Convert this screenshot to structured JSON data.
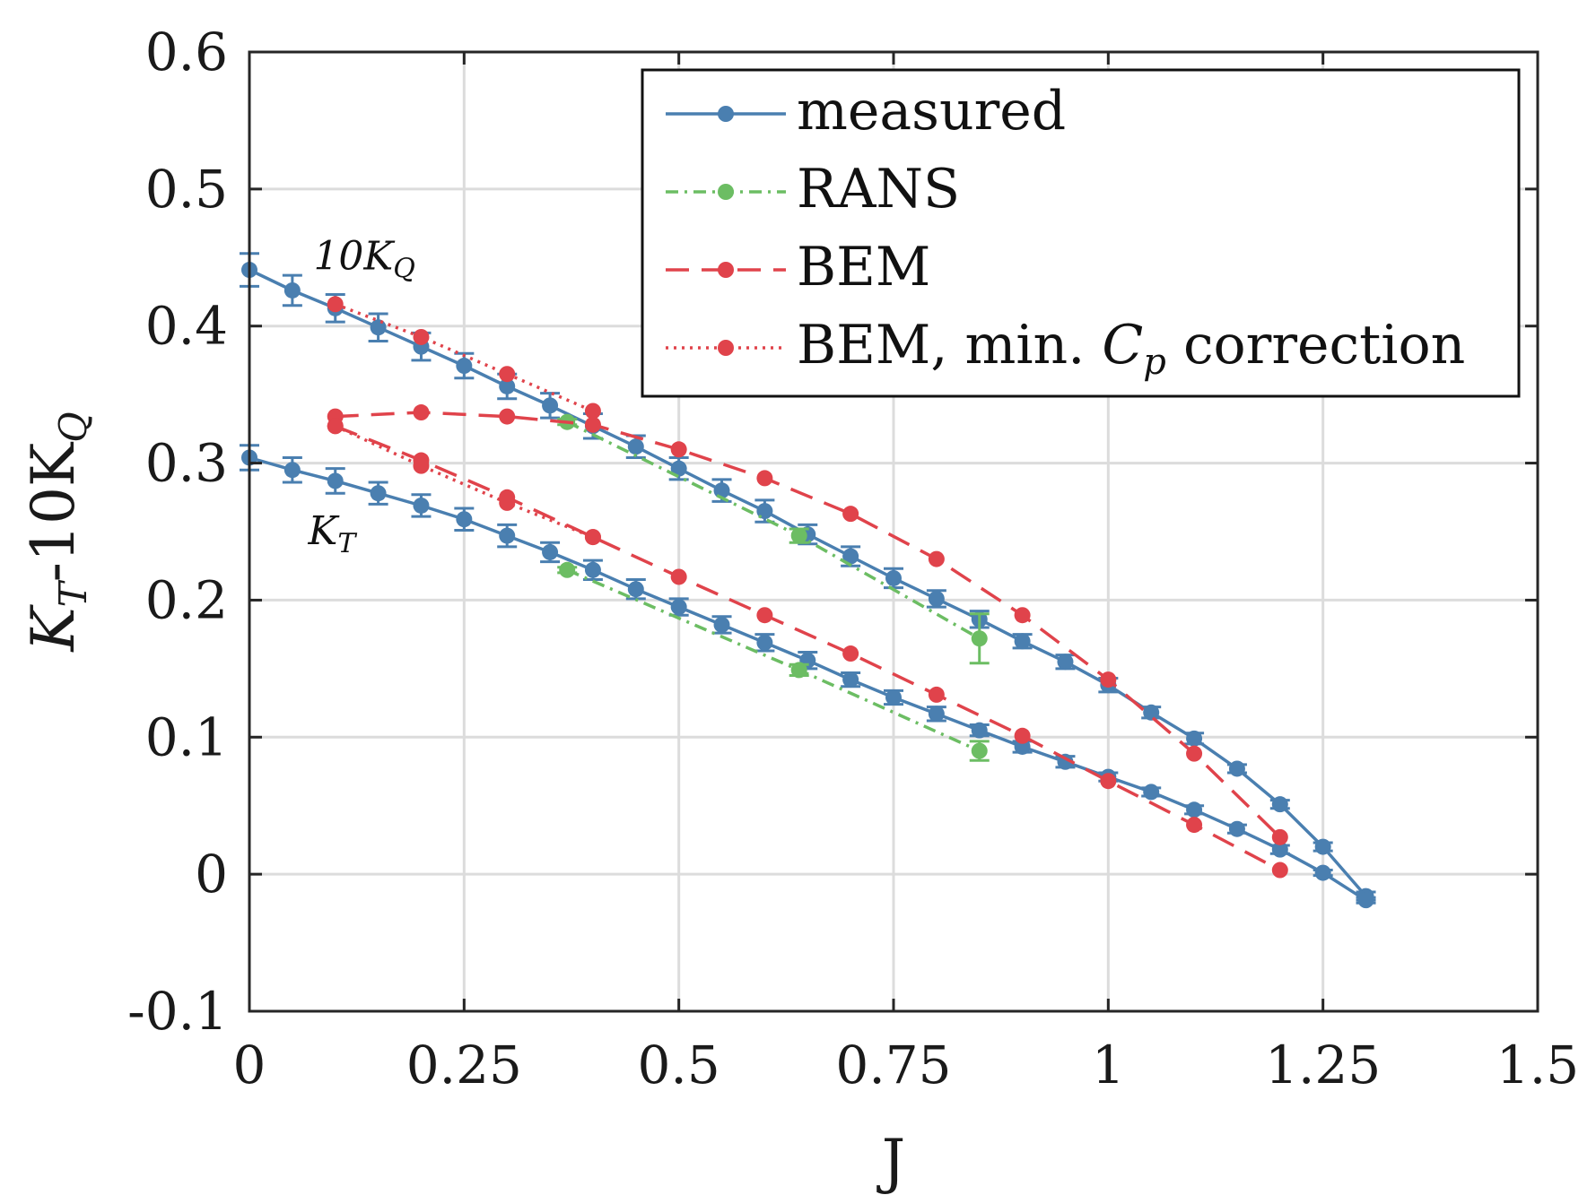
{
  "chart_data": {
    "type": "line",
    "xlabel": "J",
    "ylabel_main": "K",
    "ylabel_sub1": "T",
    "ylabel_mid": "-10K",
    "ylabel_sub2": "Q",
    "xlim": [
      0,
      1.5
    ],
    "ylim": [
      -0.1,
      0.6
    ],
    "grid": true,
    "legend_position": "top-right",
    "x_ticks": [
      0,
      0.25,
      0.5,
      0.75,
      1,
      1.25,
      1.5
    ],
    "x_tick_labels": [
      "0",
      "0.25",
      "0.5",
      "0.75",
      "1",
      "1.25",
      "1.5"
    ],
    "y_ticks": [
      -0.1,
      0,
      0.1,
      0.2,
      0.3,
      0.4,
      0.5,
      0.6
    ],
    "y_tick_labels": [
      "-0.1",
      "0",
      "0.1",
      "0.2",
      "0.3",
      "0.4",
      "0.5",
      "0.6"
    ],
    "annotations": {
      "kq": {
        "main": "10K",
        "sub": "Q",
        "x": 0.06,
        "y": 0.44
      },
      "kt": {
        "main": "K",
        "sub": "T",
        "x": 0.06,
        "y": 0.25
      }
    },
    "legend": [
      {
        "key": "measured",
        "label": "measured"
      },
      {
        "key": "rans",
        "label": "RANS"
      },
      {
        "key": "bem",
        "label": "BEM"
      },
      {
        "key": "bem_cp",
        "label": "BEM, min. ",
        "label_italic": "C",
        "label_sub": "p",
        "label_tail": " correction"
      }
    ],
    "series": [
      {
        "name": "measured 10K_Q",
        "key": "measured",
        "color": "#4a7fb0",
        "dash": "",
        "errbar": true,
        "x": [
          0,
          0.05,
          0.1,
          0.15,
          0.2,
          0.25,
          0.3,
          0.35,
          0.4,
          0.45,
          0.5,
          0.55,
          0.6,
          0.65,
          0.7,
          0.75,
          0.8,
          0.85,
          0.9,
          0.95,
          1.0,
          1.05,
          1.1,
          1.15,
          1.2,
          1.25,
          1.3
        ],
        "y": [
          0.441,
          0.426,
          0.413,
          0.399,
          0.385,
          0.371,
          0.356,
          0.342,
          0.327,
          0.312,
          0.296,
          0.28,
          0.265,
          0.248,
          0.232,
          0.216,
          0.201,
          0.186,
          0.17,
          0.155,
          0.138,
          0.118,
          0.099,
          0.077,
          0.051,
          0.02,
          -0.016
        ],
        "err": [
          0.012,
          0.011,
          0.01,
          0.01,
          0.01,
          0.009,
          0.009,
          0.009,
          0.009,
          0.008,
          0.008,
          0.008,
          0.008,
          0.007,
          0.007,
          0.007,
          0.006,
          0.006,
          0.005,
          0.005,
          0.005,
          0.004,
          0.004,
          0.003,
          0.003,
          0.003,
          0.003
        ]
      },
      {
        "name": "measured K_T",
        "key": "measured",
        "color": "#4a7fb0",
        "dash": "",
        "errbar": true,
        "x": [
          0,
          0.05,
          0.1,
          0.15,
          0.2,
          0.25,
          0.3,
          0.35,
          0.4,
          0.45,
          0.5,
          0.55,
          0.6,
          0.65,
          0.7,
          0.75,
          0.8,
          0.85,
          0.9,
          0.95,
          1.0,
          1.05,
          1.1,
          1.15,
          1.2,
          1.25,
          1.3
        ],
        "y": [
          0.304,
          0.295,
          0.287,
          0.278,
          0.269,
          0.259,
          0.247,
          0.235,
          0.222,
          0.208,
          0.195,
          0.182,
          0.169,
          0.156,
          0.142,
          0.129,
          0.117,
          0.105,
          0.093,
          0.082,
          0.071,
          0.06,
          0.047,
          0.033,
          0.018,
          0.001,
          -0.019
        ],
        "err": [
          0.009,
          0.009,
          0.009,
          0.008,
          0.008,
          0.008,
          0.008,
          0.007,
          0.007,
          0.007,
          0.006,
          0.006,
          0.006,
          0.006,
          0.005,
          0.005,
          0.005,
          0.004,
          0.004,
          0.004,
          0.003,
          0.003,
          0.003,
          0.003,
          0.003,
          0.002,
          0.002
        ]
      },
      {
        "name": "RANS 10K_Q",
        "key": "rans",
        "color": "#6cbd63",
        "dash": "14 7 3 7",
        "errbar": true,
        "x": [
          0.37,
          0.64,
          0.85
        ],
        "y": [
          0.33,
          0.247,
          0.172
        ],
        "err": [
          0.002,
          0.005,
          0.018
        ]
      },
      {
        "name": "RANS K_T",
        "key": "rans",
        "color": "#6cbd63",
        "dash": "14 7 3 7",
        "errbar": true,
        "x": [
          0.37,
          0.64,
          0.85
        ],
        "y": [
          0.222,
          0.149,
          0.09
        ],
        "err": [
          0.002,
          0.004,
          0.007
        ]
      },
      {
        "name": "BEM 10K_Q",
        "key": "bem",
        "color": "#e0434b",
        "dash": "26 14",
        "errbar": false,
        "x": [
          0.1,
          0.2,
          0.3,
          0.4,
          0.5,
          0.6,
          0.7,
          0.8,
          0.9,
          1.0,
          1.1,
          1.2
        ],
        "y": [
          0.334,
          0.337,
          0.334,
          0.328,
          0.31,
          0.289,
          0.263,
          0.23,
          0.189,
          0.142,
          0.088,
          0.027
        ]
      },
      {
        "name": "BEM K_T",
        "key": "bem",
        "color": "#e0434b",
        "dash": "26 14",
        "errbar": false,
        "x": [
          0.1,
          0.2,
          0.3,
          0.4,
          0.5,
          0.6,
          0.7,
          0.8,
          0.9,
          1.0,
          1.1,
          1.2
        ],
        "y": [
          0.327,
          0.302,
          0.275,
          0.246,
          0.217,
          0.189,
          0.161,
          0.131,
          0.101,
          0.068,
          0.036,
          0.003
        ]
      },
      {
        "name": "BEM min Cp 10K_Q",
        "key": "bem_cp",
        "color": "#e0434b",
        "dash": "3 6",
        "errbar": false,
        "x": [
          0.1,
          0.2,
          0.3,
          0.4
        ],
        "y": [
          0.416,
          0.392,
          0.365,
          0.338
        ]
      },
      {
        "name": "BEM min Cp K_T",
        "key": "bem_cp",
        "color": "#e0434b",
        "dash": "3 6",
        "errbar": false,
        "x": [
          0.1,
          0.2,
          0.3,
          0.4
        ],
        "y": [
          0.327,
          0.298,
          0.271,
          0.246
        ]
      }
    ]
  }
}
